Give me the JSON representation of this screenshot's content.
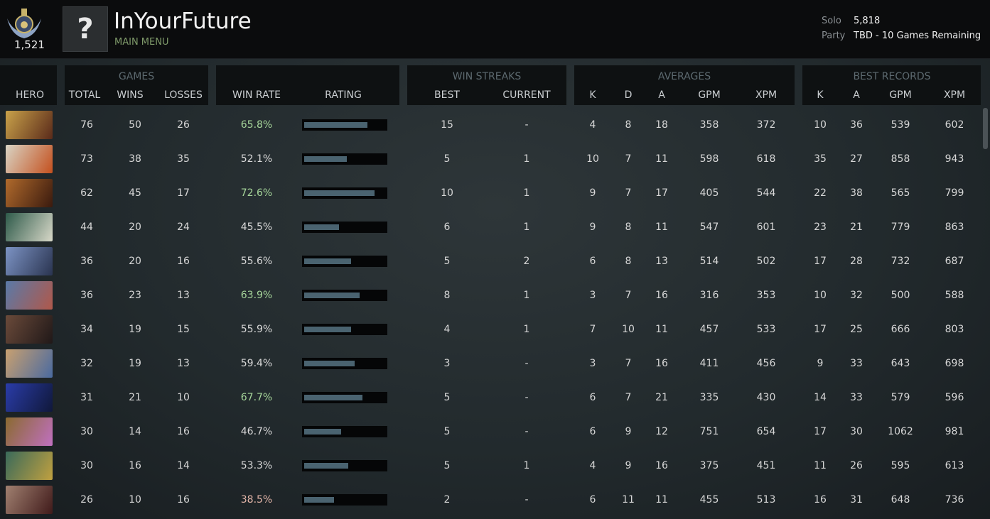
{
  "header": {
    "rank": "1,521",
    "avatar": "?",
    "name": "InYourFuture",
    "menu": "MAIN MENU",
    "solo_label": "Solo",
    "solo_value": "5,818",
    "party_label": "Party",
    "party_value": "TBD - 10 Games Remaining"
  },
  "table": {
    "groups": [
      "GAMES",
      "WIN STREAKS",
      "AVERAGES",
      "BEST RECORDS"
    ],
    "columns": [
      "HERO",
      "TOTAL",
      "WINS",
      "LOSSES",
      "WIN RATE",
      "RATING",
      "BEST",
      "CURRENT",
      "K",
      "D",
      "A",
      "GPM",
      "XPM",
      "K",
      "A",
      "GPM",
      "XPM"
    ],
    "rows": [
      {
        "cells": [
          "76",
          "50",
          "26",
          "65.8%",
          "15",
          "-",
          "4",
          "8",
          "18",
          "358",
          "372",
          "10",
          "36",
          "539",
          "602"
        ],
        "rating": 0.78,
        "win_rate_color": "#a6d59a"
      },
      {
        "cells": [
          "73",
          "38",
          "35",
          "52.1%",
          "5",
          "1",
          "10",
          "7",
          "11",
          "598",
          "618",
          "35",
          "27",
          "858",
          "943"
        ],
        "rating": 0.53,
        "win_rate_color": "#d8d8d8"
      },
      {
        "cells": [
          "62",
          "45",
          "17",
          "72.6%",
          "10",
          "1",
          "9",
          "7",
          "17",
          "405",
          "544",
          "22",
          "38",
          "565",
          "799"
        ],
        "rating": 0.87,
        "win_rate_color": "#a6d59a"
      },
      {
        "cells": [
          "44",
          "20",
          "24",
          "45.5%",
          "6",
          "1",
          "9",
          "8",
          "11",
          "547",
          "601",
          "23",
          "21",
          "779",
          "863"
        ],
        "rating": 0.43,
        "win_rate_color": "#d8d8d8"
      },
      {
        "cells": [
          "36",
          "20",
          "16",
          "55.6%",
          "5",
          "2",
          "6",
          "8",
          "13",
          "514",
          "502",
          "17",
          "28",
          "732",
          "687"
        ],
        "rating": 0.58,
        "win_rate_color": "#d8d8d8"
      },
      {
        "cells": [
          "36",
          "23",
          "13",
          "63.9%",
          "8",
          "1",
          "3",
          "7",
          "16",
          "316",
          "353",
          "10",
          "32",
          "500",
          "588"
        ],
        "rating": 0.68,
        "win_rate_color": "#a6d59a"
      },
      {
        "cells": [
          "34",
          "19",
          "15",
          "55.9%",
          "4",
          "1",
          "7",
          "10",
          "11",
          "457",
          "533",
          "17",
          "25",
          "666",
          "803"
        ],
        "rating": 0.58,
        "win_rate_color": "#d8d8d8"
      },
      {
        "cells": [
          "32",
          "19",
          "13",
          "59.4%",
          "3",
          "-",
          "3",
          "7",
          "16",
          "411",
          "456",
          "9",
          "33",
          "643",
          "698"
        ],
        "rating": 0.62,
        "win_rate_color": "#d8d8d8"
      },
      {
        "cells": [
          "31",
          "21",
          "10",
          "67.7%",
          "5",
          "-",
          "6",
          "7",
          "21",
          "335",
          "430",
          "14",
          "33",
          "579",
          "596"
        ],
        "rating": 0.72,
        "win_rate_color": "#a6d59a"
      },
      {
        "cells": [
          "30",
          "14",
          "16",
          "46.7%",
          "5",
          "-",
          "6",
          "9",
          "12",
          "751",
          "654",
          "17",
          "30",
          "1062",
          "981"
        ],
        "rating": 0.46,
        "win_rate_color": "#d8d8d8"
      },
      {
        "cells": [
          "30",
          "16",
          "14",
          "53.3%",
          "5",
          "1",
          "4",
          "9",
          "16",
          "375",
          "451",
          "11",
          "26",
          "595",
          "613"
        ],
        "rating": 0.54,
        "win_rate_color": "#d8d8d8"
      },
      {
        "cells": [
          "26",
          "10",
          "16",
          "38.5%",
          "2",
          "-",
          "6",
          "11",
          "11",
          "455",
          "513",
          "16",
          "31",
          "648",
          "736"
        ],
        "rating": 0.37,
        "win_rate_color": "#e2b5a8"
      }
    ]
  }
}
